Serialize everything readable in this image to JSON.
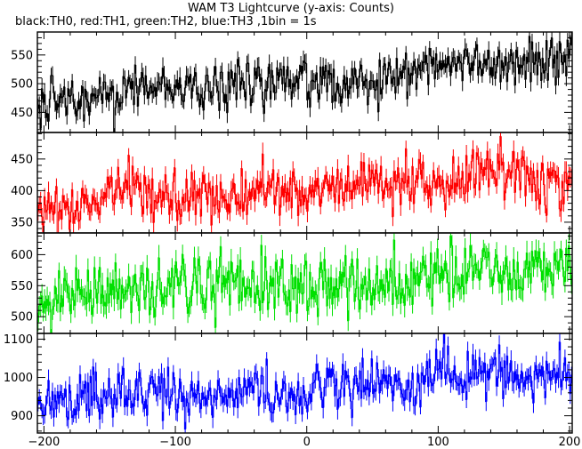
{
  "chart_data": {
    "type": "line",
    "title": "WAM T3 Lightcurve (y-axis: Counts)",
    "subtitle": "black:TH0, red:TH1, green:TH2, blue:TH3 ,1bin = 1s",
    "x_range": [
      -205,
      202
    ],
    "x_ticks": [
      -200,
      -100,
      0,
      100,
      200
    ],
    "x_tick_labels": [
      "−200",
      "−100",
      "0",
      "100",
      "200"
    ],
    "bin_seconds": 1,
    "grid": false,
    "legend": "none",
    "panels": [
      {
        "series_name": "TH0",
        "color": "#000000",
        "ylim": [
          415,
          590
        ],
        "y_ticks": [
          450,
          500,
          550
        ],
        "y_tick_labels": [
          "450",
          "500",
          "550"
        ],
        "trend_start": 465,
        "trend_end": 535,
        "noise": 21
      },
      {
        "series_name": "TH1",
        "color": "#ff0000",
        "ylim": [
          333,
          492
        ],
        "y_ticks": [
          350,
          400,
          450
        ],
        "y_tick_labels": [
          "350",
          "400",
          "450"
        ],
        "trend_start": 375,
        "trend_end": 425,
        "noise": 20
      },
      {
        "series_name": "TH2",
        "color": "#00e000",
        "ylim": [
          473,
          635
        ],
        "y_ticks": [
          500,
          550,
          600
        ],
        "y_tick_labels": [
          "500",
          "550",
          "600"
        ],
        "trend_start": 525,
        "trend_end": 580,
        "noise": 23
      },
      {
        "series_name": "TH3",
        "color": "#0000ff",
        "ylim": [
          855,
          1115
        ],
        "y_ticks": [
          900,
          1000,
          1100
        ],
        "y_tick_labels": [
          "900",
          "1000",
          "1100"
        ],
        "trend_start": 930,
        "trend_end": 1010,
        "noise": 32
      }
    ]
  }
}
